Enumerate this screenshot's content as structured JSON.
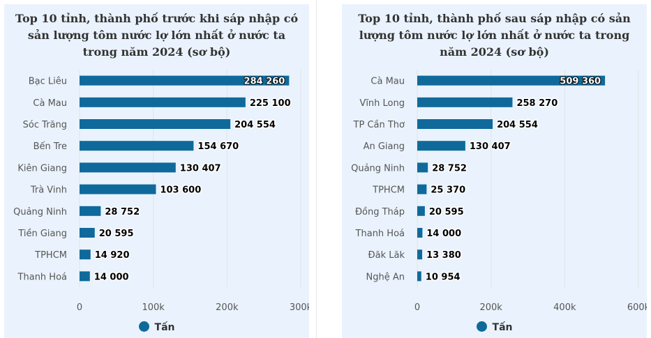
{
  "chart_data": [
    {
      "type": "bar",
      "orientation": "horizontal",
      "title": "Top 10 tỉnh, thành phố trước khi sáp nhập có sản lượng tôm nước lợ lớn nhất ở nước ta trong năm 2024 (sơ bộ)",
      "categories": [
        "Bạc Liêu",
        "Cà Mau",
        "Sóc Trăng",
        "Bến Tre",
        "Kiên Giang",
        "Trà Vinh",
        "Quảng Ninh",
        "Tiền Giang",
        "TPHCM",
        "Thanh Hoá"
      ],
      "series": [
        {
          "name": "Tấn",
          "values": [
            284260,
            225100,
            204554,
            154670,
            130407,
            103600,
            28752,
            20595,
            14920,
            14000
          ]
        }
      ],
      "data_labels": [
        "284 260",
        "225 100",
        "204 554",
        "154 670",
        "130 407",
        "103 600",
        "28 752",
        "20 595",
        "14 920",
        "14 000"
      ],
      "x_ticks": [
        0,
        100000,
        200000,
        300000
      ],
      "x_tick_labels": [
        "0",
        "100k",
        "200k",
        "300k"
      ],
      "xlim": [
        0,
        300000
      ],
      "grid": true,
      "legend_position": "bottom-center",
      "bar_color": "#0f6a9b"
    },
    {
      "type": "bar",
      "orientation": "horizontal",
      "title": "Top 10 tỉnh, thành phố sau sáp nhập có sản lượng tôm nước lợ lớn nhất ở nước ta trong năm 2024 (sơ bộ)",
      "categories": [
        "Cà Mau",
        "Vĩnh Long",
        "TP Cần Thơ",
        "An Giang",
        "Quảng Ninh",
        "TPHCM",
        "Đồng Tháp",
        "Thanh Hoá",
        "Đăk Lăk",
        "Nghệ An"
      ],
      "series": [
        {
          "name": "Tấn",
          "values": [
            509360,
            258270,
            204554,
            130407,
            28752,
            25370,
            20595,
            14000,
            13380,
            10954
          ]
        }
      ],
      "data_labels": [
        "509 360",
        "258 270",
        "204 554",
        "130 407",
        "28 752",
        "25 370",
        "20 595",
        "14 000",
        "13 380",
        "10 954"
      ],
      "x_ticks": [
        0,
        200000,
        400000,
        600000
      ],
      "x_tick_labels": [
        "0",
        "200k",
        "400k",
        "600k"
      ],
      "xlim": [
        0,
        600000
      ],
      "grid": true,
      "legend_position": "bottom-center",
      "bar_color": "#0f6a9b"
    }
  ]
}
